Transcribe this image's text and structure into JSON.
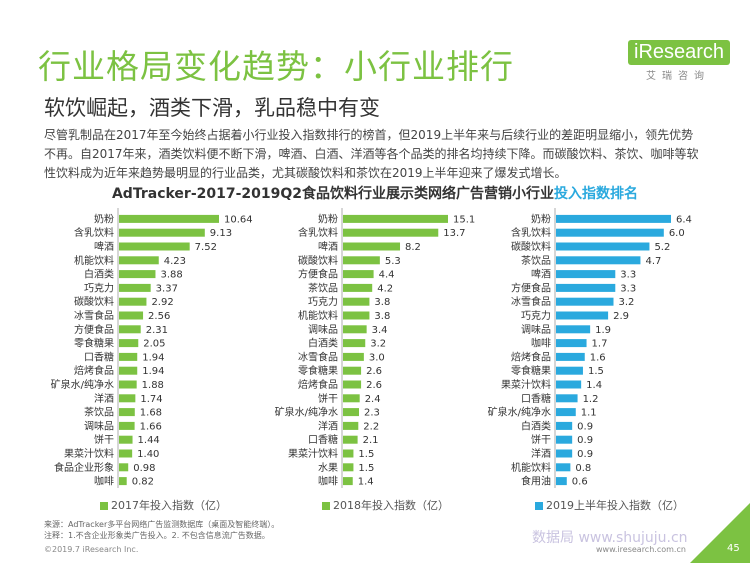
{
  "header": {
    "title": "行业格局变化趋势：小行业排行",
    "subtitle": "软饮崛起，酒类下滑，乳品稳中有变",
    "logo_main": "iResearch",
    "logo_sub": "艾瑞咨询"
  },
  "body_text": "尽管乳制品在2017年至今始终占据着小行业投入指数排行的榜首，但2019上半年来与后续行业的差距明显缩小，领先优势不再。自2017年来，酒类饮料便不断下滑，啤酒、白酒、洋酒等各个品类的排名均持续下降。而碳酸饮料、茶饮、咖啡等软性饮料成为近年来趋势最明显的行业品类，尤其碳酸饮料和茶饮在2019上半年迎来了爆发式增长。",
  "chart_title": {
    "main": "AdTracker-2017-2019Q2食品饮料行业展示类网络广告营销小行业",
    "highlight": "投入指数排名"
  },
  "colors": {
    "green": "#7cc242",
    "blue": "#2aa9de",
    "title_green": "#7cc242"
  },
  "chart_data": [
    {
      "type": "bar",
      "orientation": "horizontal",
      "series_name": "2017年投入指数（亿）",
      "color": "#7cc242",
      "categories": [
        "奶粉",
        "含乳饮料",
        "啤酒",
        "机能饮料",
        "白酒类",
        "巧克力",
        "碳酸饮料",
        "冰雪食品",
        "方便食品",
        "零食糖果",
        "口香糖",
        "焙烤食品",
        "矿泉水/纯净水",
        "洋酒",
        "茶饮品",
        "调味品",
        "饼干",
        "果菜汁饮料",
        "食品企业形象",
        "咖啡"
      ],
      "values": [
        10.64,
        9.13,
        7.52,
        4.23,
        3.88,
        3.37,
        2.92,
        2.56,
        2.31,
        2.05,
        1.94,
        1.94,
        1.88,
        1.74,
        1.68,
        1.66,
        1.44,
        1.4,
        0.98,
        0.82
      ],
      "labels": [
        "10.64",
        "9.13",
        "7.52",
        "4.23",
        "3.88",
        "3.37",
        "2.92",
        "2.56",
        "2.31",
        "2.05",
        "1.94",
        "1.94",
        "1.88",
        "1.74",
        "1.68",
        "1.66",
        "1.44",
        "1.40",
        "0.98",
        "0.82"
      ]
    },
    {
      "type": "bar",
      "orientation": "horizontal",
      "series_name": "2018年投入指数（亿）",
      "color": "#7cc242",
      "categories": [
        "奶粉",
        "含乳饮料",
        "啤酒",
        "碳酸饮料",
        "方便食品",
        "茶饮品",
        "巧克力",
        "机能饮料",
        "调味品",
        "白酒类",
        "冰雪食品",
        "零食糖果",
        "焙烤食品",
        "饼干",
        "矿泉水/纯净水",
        "洋酒",
        "口香糖",
        "果菜汁饮料",
        "水果",
        "咖啡"
      ],
      "values": [
        15.1,
        13.7,
        8.2,
        5.3,
        4.4,
        4.2,
        3.8,
        3.8,
        3.4,
        3.2,
        3.0,
        2.6,
        2.6,
        2.4,
        2.3,
        2.2,
        2.1,
        1.5,
        1.5,
        1.4
      ],
      "labels": [
        "15.1",
        "13.7",
        "8.2",
        "5.3",
        "4.4",
        "4.2",
        "3.8",
        "3.8",
        "3.4",
        "3.2",
        "3.0",
        "2.6",
        "2.6",
        "2.4",
        "2.3",
        "2.2",
        "2.1",
        "1.5",
        "1.5",
        "1.4"
      ]
    },
    {
      "type": "bar",
      "orientation": "horizontal",
      "series_name": "2019上半年投入指数（亿）",
      "color": "#2aa9de",
      "categories": [
        "奶粉",
        "含乳饮料",
        "碳酸饮料",
        "茶饮品",
        "啤酒",
        "方便食品",
        "冰雪食品",
        "巧克力",
        "调味品",
        "咖啡",
        "焙烤食品",
        "零食糖果",
        "果菜汁饮料",
        "口香糖",
        "矿泉水/纯净水",
        "白酒类",
        "饼干",
        "洋酒",
        "机能饮料",
        "食用油"
      ],
      "values": [
        6.4,
        6.0,
        5.2,
        4.7,
        3.3,
        3.3,
        3.2,
        2.9,
        1.9,
        1.7,
        1.6,
        1.5,
        1.4,
        1.2,
        1.1,
        0.9,
        0.9,
        0.9,
        0.8,
        0.6
      ],
      "labels": [
        "6.4",
        "6.0",
        "5.2",
        "4.7",
        "3.3",
        "3.3",
        "3.2",
        "2.9",
        "1.9",
        "1.7",
        "1.6",
        "1.5",
        "1.4",
        "1.2",
        "1.1",
        "0.9",
        "0.9",
        "0.9",
        "0.8",
        "0.6"
      ]
    }
  ],
  "footer": {
    "source_line1": "来源：AdTracker多平台网络广告监测数据库（桌面及智能终端）。",
    "source_line2": "注释：1.不含企业形象类广告投入。2. 不包含信息流广告数据。",
    "copyright": "©2019.7 iResearch Inc.",
    "site": "www.iresearch.com.cn",
    "page": "45",
    "watermark": "数据局 www.shujuju.cn"
  }
}
